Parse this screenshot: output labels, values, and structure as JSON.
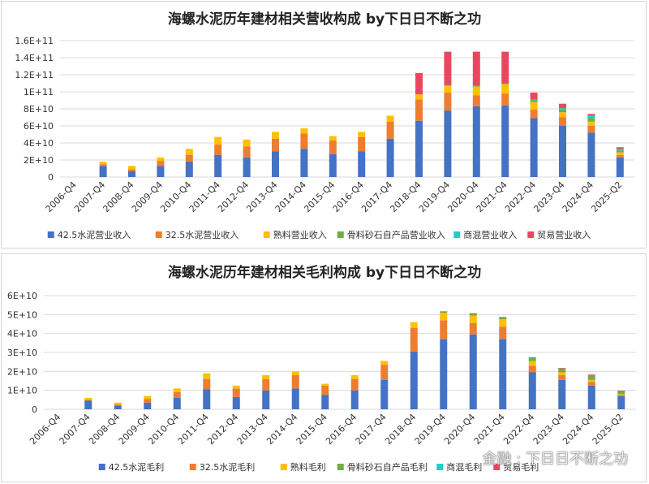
{
  "chart_data": [
    {
      "type": "bar",
      "stacked": true,
      "title": "海螺水泥历年建材相关营收构成 by下日日不断之功",
      "categories": [
        "2006-Q4",
        "2007-Q4",
        "2008-Q4",
        "2009-Q4",
        "2010-Q4",
        "2011-Q4",
        "2012-Q4",
        "2013-Q4",
        "2014-Q4",
        "2015-Q4",
        "2016-Q4",
        "2017-Q4",
        "2018-Q4",
        "2019-Q4",
        "2020-Q4",
        "2021-Q4",
        "2022-Q4",
        "2023-Q4",
        "2024-Q4",
        "2025-Q2"
      ],
      "ylim": [
        0,
        160000000000.0
      ],
      "yticks": [
        0,
        20000000000.0,
        40000000000.0,
        60000000000.0,
        80000000000.0,
        100000000000.0,
        120000000000.0,
        140000000000.0,
        160000000000.0
      ],
      "ytick_labels": [
        "0",
        "2E+10",
        "4E+10",
        "6E+10",
        "8E+10",
        "1E+11",
        "1.2E+11",
        "1.4E+11",
        "1.6E+11"
      ],
      "legend_position": "bottom",
      "series": [
        {
          "name": "42.5水泥营业收入",
          "color": "#4472C4",
          "values": [
            0,
            13000000000.0,
            7000000000.0,
            13000000000.0,
            18000000000.0,
            26000000000.0,
            23000000000.0,
            30000000000.0,
            33000000000.0,
            27000000000.0,
            30000000000.0,
            45000000000.0,
            66000000000.0,
            78000000000.0,
            83000000000.0,
            84000000000.0,
            69000000000.0,
            60000000000.0,
            52000000000.0,
            23000000000.0
          ]
        },
        {
          "name": "32.5水泥营业收入",
          "color": "#ED7D31",
          "values": [
            0,
            2000000000.0,
            2000000000.0,
            6000000000.0,
            8000000000.0,
            12000000000.0,
            13000000000.0,
            15000000000.0,
            18000000000.0,
            16000000000.0,
            17000000000.0,
            20000000000.0,
            25000000000.0,
            21000000000.0,
            13000000000.0,
            14000000000.0,
            10000000000.0,
            10000000000.0,
            8000000000.0,
            3000000000.0
          ]
        },
        {
          "name": "熟料营业收入",
          "color": "#FFC000",
          "values": [
            0,
            3000000000.0,
            4000000000.0,
            4000000000.0,
            7000000000.0,
            9000000000.0,
            8000000000.0,
            8000000000.0,
            6000000000.0,
            5000000000.0,
            6000000000.0,
            7000000000.0,
            6000000000.0,
            8000000000.0,
            10000000000.0,
            11000000000.0,
            9000000000.0,
            6000000000.0,
            5000000000.0,
            3000000000.0
          ]
        },
        {
          "name": "骨料砂石自产品营业收入",
          "color": "#70AD47",
          "values": [
            0,
            0,
            0,
            0,
            0,
            0,
            0,
            0,
            0,
            0,
            0,
            0,
            0,
            1000000000.0,
            1000000000.0,
            1000000000.0,
            2000000000.0,
            3000000000.0,
            4000000000.0,
            2000000000.0
          ]
        },
        {
          "name": "商混营业收入",
          "color": "#2BC9C2",
          "values": [
            0,
            0,
            0,
            0,
            0,
            0,
            0,
            0,
            0,
            0,
            0,
            0,
            0,
            0,
            0,
            0,
            1000000000.0,
            2000000000.0,
            3000000000.0,
            2000000000.0
          ]
        },
        {
          "name": "贸易营业收入",
          "color": "#E8485F",
          "values": [
            0,
            0,
            0,
            0,
            0,
            0,
            0,
            0,
            0,
            0,
            0,
            0,
            25000000000.0,
            39000000000.0,
            40000000000.0,
            37000000000.0,
            8000000000.0,
            5000000000.0,
            2000000000.0,
            2000000000.0
          ]
        }
      ]
    },
    {
      "type": "bar",
      "stacked": true,
      "title": "海螺水泥历年建材相关毛利构成 by下日日不断之功",
      "categories": [
        "2006-Q4",
        "2007-Q4",
        "2008-Q4",
        "2009-Q4",
        "2010-Q4",
        "2011-Q4",
        "2012-Q4",
        "2013-Q4",
        "2014-Q4",
        "2015-Q4",
        "2016-Q4",
        "2017-Q4",
        "2018-Q4",
        "2019-Q4",
        "2020-Q4",
        "2021-Q4",
        "2022-Q4",
        "2023-Q4",
        "2024-Q4",
        "2025-Q2"
      ],
      "ylim": [
        0,
        60000000000.0
      ],
      "yticks": [
        0,
        10000000000.0,
        20000000000.0,
        30000000000.0,
        40000000000.0,
        50000000000.0,
        60000000000.0
      ],
      "ytick_labels": [
        "0",
        "1E+10",
        "2E+10",
        "3E+10",
        "4E+10",
        "5E+10",
        "6E+10"
      ],
      "legend_position": "bottom",
      "series": [
        {
          "name": "42.5水泥毛利",
          "color": "#4472C4",
          "values": [
            0,
            4500000000.0,
            2000000000.0,
            3500000000.0,
            6000000000.0,
            10500000000.0,
            6500000000.0,
            10000000000.0,
            11000000000.0,
            7500000000.0,
            10000000000.0,
            15500000000.0,
            30500000000.0,
            37000000000.0,
            39500000000.0,
            37000000000.0,
            19500000000.0,
            15500000000.0,
            12500000000.0,
            7000000000.0
          ]
        },
        {
          "name": "32.5水泥毛利",
          "color": "#ED7D31",
          "values": [
            0,
            500000000.0,
            500000000.0,
            2000000000.0,
            3000000000.0,
            5500000000.0,
            4500000000.0,
            6000000000.0,
            7000000000.0,
            5000000000.0,
            6000000000.0,
            8000000000.0,
            12500000000.0,
            10000000000.0,
            6000000000.0,
            6500000000.0,
            3500000000.0,
            2500000000.0,
            2000000000.0,
            500000000.0
          ]
        },
        {
          "name": "熟料毛利",
          "color": "#FFC000",
          "values": [
            0,
            1000000000.0,
            1000000000.0,
            1500000000.0,
            2000000000.0,
            3000000000.0,
            1500000000.0,
            2000000000.0,
            2000000000.0,
            1000000000.0,
            2000000000.0,
            2000000000.0,
            3000000000.0,
            4000000000.0,
            4000000000.0,
            4000000000.0,
            2500000000.0,
            1500000000.0,
            1000000000.0,
            500000000.0
          ]
        },
        {
          "name": "骨料砂石自产品毛利",
          "color": "#70AD47",
          "values": [
            0,
            0,
            0,
            0,
            0,
            0,
            0,
            0,
            0,
            0,
            0,
            0,
            0,
            500000000.0,
            1000000000.0,
            1000000000.0,
            1500000000.0,
            2000000000.0,
            2500000000.0,
            1500000000.0
          ]
        },
        {
          "name": "商混毛利",
          "color": "#2BC9C2",
          "values": [
            0,
            0,
            0,
            0,
            0,
            0,
            0,
            0,
            0,
            0,
            0,
            0,
            0,
            0,
            0,
            0,
            200000000.0,
            200000000.0,
            200000000.0,
            200000000.0
          ]
        },
        {
          "name": "贸易毛利",
          "color": "#E8485F",
          "values": [
            0,
            0,
            0,
            0,
            0,
            0,
            0,
            0,
            0,
            0,
            0,
            0,
            0,
            200000000.0,
            200000000.0,
            200000000.0,
            200000000.0,
            100000000.0,
            100000000.0,
            100000000.0
          ]
        }
      ]
    }
  ],
  "watermark": "金融 : 下日日不断之功"
}
